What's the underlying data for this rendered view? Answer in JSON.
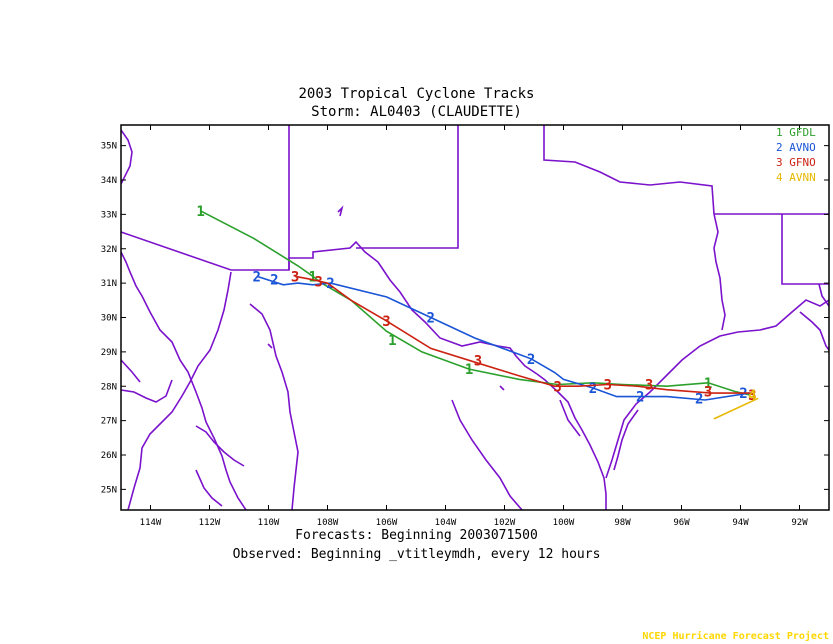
{
  "header": {
    "title": "2003 Tropical Cyclone Tracks",
    "storm": "Storm: AL0403 (CLAUDETTE)"
  },
  "footer": {
    "forecasts": "Forecasts: Beginning 2003071500",
    "observed": "Observed: Beginning _vtitleymdh, every 12 hours",
    "credit": "NCEP Hurricane Forecast Project"
  },
  "colors": {
    "border": "#7b12cc",
    "GFDL": "#2ca02c",
    "AVNO": "#1a55d6",
    "GFNO": "#cc2211",
    "AVNN": "#e6b800"
  },
  "chart_data": {
    "type": "line",
    "xlim": [
      -115,
      -91
    ],
    "ylim": [
      24.4,
      35.6
    ],
    "x_ticks": [
      "114W",
      "112W",
      "110W",
      "108W",
      "106W",
      "104W",
      "102W",
      "100W",
      "98W",
      "96W",
      "94W",
      "92W"
    ],
    "x_tick_values": [
      -114,
      -112,
      -110,
      -108,
      -106,
      -104,
      -102,
      -100,
      -98,
      -96,
      -94,
      -92
    ],
    "y_ticks": [
      "25N",
      "26N",
      "27N",
      "28N",
      "29N",
      "30N",
      "31N",
      "32N",
      "33N",
      "34N",
      "35N"
    ],
    "y_tick_values": [
      25,
      26,
      27,
      28,
      29,
      30,
      31,
      32,
      33,
      34,
      35
    ],
    "series": [
      {
        "name": "GFDL",
        "marker": "1",
        "points": [
          [
            -93.7,
            27.75
          ],
          [
            -94.2,
            27.85
          ],
          [
            -95.1,
            28.1
          ],
          [
            -96.5,
            28.0
          ],
          [
            -98.0,
            28.05
          ],
          [
            -99.0,
            28.1
          ],
          [
            -100.2,
            28.05
          ],
          [
            -101.5,
            28.2
          ],
          [
            -103.2,
            28.5
          ],
          [
            -104.8,
            29.0
          ],
          [
            -106.0,
            29.6
          ],
          [
            -107.2,
            30.5
          ],
          [
            -108.2,
            31.0
          ],
          [
            -108.5,
            31.2
          ],
          [
            -109.0,
            31.5
          ],
          [
            -110.5,
            32.3
          ],
          [
            -112.3,
            33.1
          ]
        ],
        "markers": [
          [
            -95.1,
            28.1
          ],
          [
            -103.2,
            28.5
          ],
          [
            -105.8,
            29.35
          ],
          [
            -108.5,
            31.2
          ],
          [
            -112.3,
            33.1
          ]
        ]
      },
      {
        "name": "AVNO",
        "marker": "2",
        "points": [
          [
            -93.7,
            27.8
          ],
          [
            -95.2,
            27.6
          ],
          [
            -96.5,
            27.7
          ],
          [
            -97.5,
            27.7
          ],
          [
            -98.2,
            27.7
          ],
          [
            -99.0,
            27.95
          ],
          [
            -100.0,
            28.2
          ],
          [
            -100.3,
            28.4
          ],
          [
            -101.1,
            28.8
          ],
          [
            -103.0,
            29.4
          ],
          [
            -104.5,
            30.0
          ],
          [
            -106.0,
            30.6
          ],
          [
            -107.9,
            31.0
          ],
          [
            -108.5,
            30.95
          ],
          [
            -109.0,
            31.0
          ],
          [
            -109.5,
            30.95
          ],
          [
            -110.4,
            31.2
          ]
        ],
        "markers": [
          [
            -93.9,
            27.8
          ],
          [
            -95.4,
            27.65
          ],
          [
            -97.4,
            27.7
          ],
          [
            -99.0,
            27.95
          ],
          [
            -101.1,
            28.8
          ],
          [
            -104.5,
            30.0
          ],
          [
            -107.9,
            31.0
          ],
          [
            -109.8,
            31.1
          ],
          [
            -110.4,
            31.2
          ]
        ]
      },
      {
        "name": "GFNO",
        "marker": "3",
        "points": [
          [
            -93.6,
            27.8
          ],
          [
            -95.0,
            27.8
          ],
          [
            -96.5,
            27.9
          ],
          [
            -97.5,
            28.0
          ],
          [
            -98.5,
            28.05
          ],
          [
            -99.5,
            28.0
          ],
          [
            -100.3,
            28.0
          ],
          [
            -101.5,
            28.3
          ],
          [
            -103.0,
            28.7
          ],
          [
            -104.5,
            29.1
          ],
          [
            -106.0,
            29.9
          ],
          [
            -107.2,
            30.5
          ],
          [
            -108.0,
            31.0
          ],
          [
            -108.5,
            31.1
          ],
          [
            -109.1,
            31.2
          ]
        ],
        "markers": [
          [
            -93.6,
            27.75
          ],
          [
            -95.1,
            27.85
          ],
          [
            -97.1,
            28.05
          ],
          [
            -98.5,
            28.05
          ],
          [
            -100.2,
            28.0
          ],
          [
            -102.9,
            28.75
          ],
          [
            -106.0,
            29.9
          ],
          [
            -108.3,
            31.05
          ],
          [
            -109.1,
            31.2
          ]
        ]
      },
      {
        "name": "AVNN",
        "marker": "4",
        "points": [
          [
            -94.9,
            27.05
          ],
          [
            -93.4,
            27.65
          ]
        ],
        "markers": [
          [
            -93.6,
            27.75
          ]
        ]
      }
    ]
  }
}
